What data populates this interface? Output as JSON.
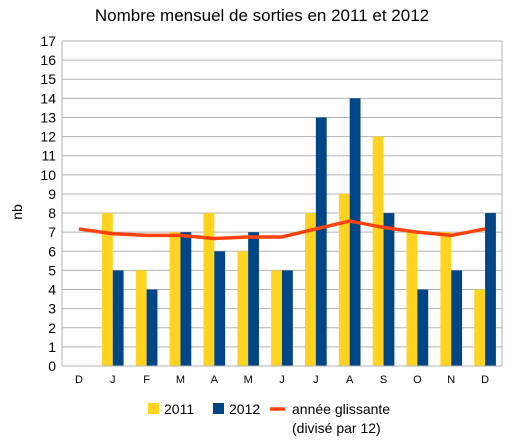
{
  "chart_data": {
    "type": "bar",
    "title": "Nombre mensuel de sorties en 2011 et 2012",
    "xlabel": "",
    "ylabel": "nb",
    "ylim": [
      0,
      17
    ],
    "yticks": [
      0,
      1,
      2,
      3,
      4,
      5,
      6,
      7,
      8,
      9,
      10,
      11,
      12,
      13,
      14,
      15,
      16,
      17
    ],
    "grid": true,
    "legend_position": "bottom",
    "categories": [
      "D",
      "J",
      "F",
      "M",
      "A",
      "M",
      "J",
      "J",
      "A",
      "S",
      "O",
      "N",
      "D"
    ],
    "series": [
      {
        "name": "2011",
        "type": "bar",
        "color": "#ffd320",
        "values": [
          null,
          8,
          5,
          7,
          8,
          6,
          5,
          8,
          9,
          12,
          7,
          7,
          4
        ]
      },
      {
        "name": "2012",
        "type": "bar",
        "color": "#004586",
        "values": [
          null,
          5,
          4,
          7,
          6,
          7,
          5,
          13,
          14,
          8,
          4,
          5,
          8
        ]
      },
      {
        "name": "année glissante",
        "name_line2": "(divisé par 12)",
        "type": "line",
        "color": "#ff420e",
        "values": [
          7.17,
          6.92,
          6.83,
          6.83,
          6.67,
          6.75,
          6.75,
          7.17,
          7.58,
          7.25,
          7.0,
          6.83,
          7.17
        ]
      }
    ]
  }
}
